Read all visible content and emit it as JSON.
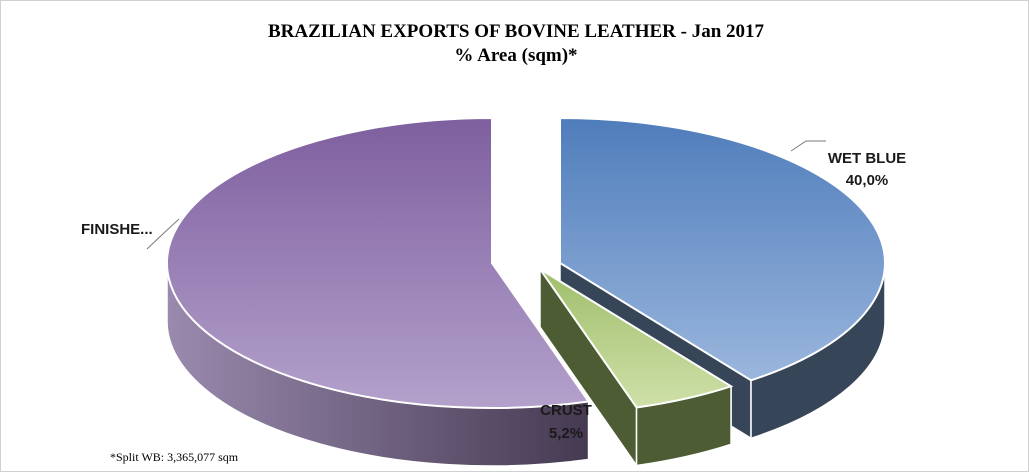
{
  "chart_data": {
    "type": "pie",
    "title": "BRAZILIAN EXPORTS OF BOVINE LEATHER -  Jan 2017",
    "subtitle": "% Area (sqm)*",
    "footnote": "*Split WB: 3,365,077 sqm",
    "slices": [
      {
        "label": "WET BLUE",
        "value": 40.0,
        "value_label": "40,0%",
        "color": "#6f97cd",
        "side_color": "#374559"
      },
      {
        "label": "CRUST",
        "value": 5.2,
        "value_label": "5,2%",
        "color": "#b3cd87",
        "side_color": "#4e5c33"
      },
      {
        "label": "FINISHE...",
        "value": 54.8,
        "color": "#9e86b8",
        "side_color": "#5e5070"
      }
    ],
    "style": "3d-exploded"
  }
}
